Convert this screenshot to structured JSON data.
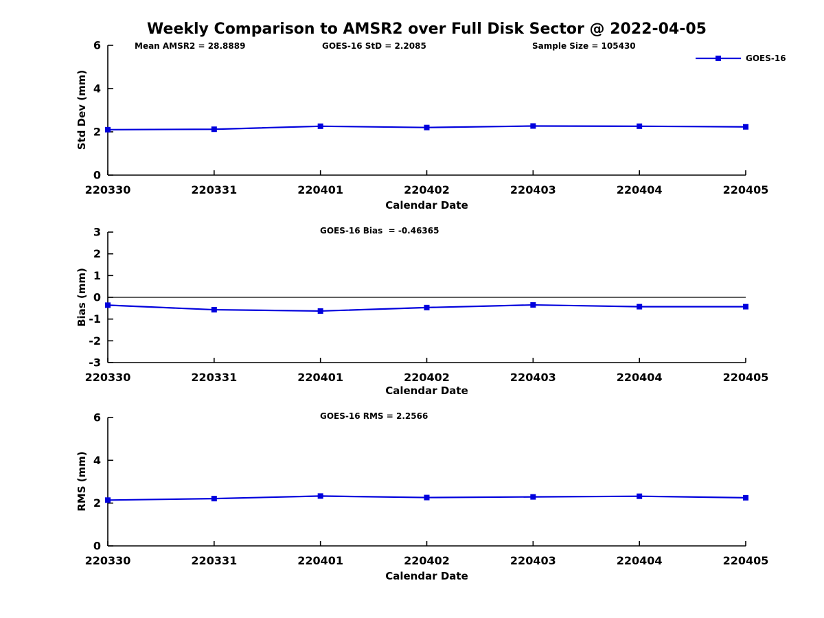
{
  "title": "Weekly Comparison to AMSR2 over Full Disk Sector @ 2022-04-05",
  "annotations": {
    "mean_amsr2": "Mean AMSR2 = 28.8889",
    "goes16_std": "GOES-16 StD = 2.2085",
    "sample_size": "Sample Size = 105430",
    "goes16_bias": "GOES-16 Bias  = -0.46365",
    "goes16_rms": "GOES-16 RMS = 2.2566"
  },
  "legend": {
    "label": "GOES-16",
    "position": "top-right"
  },
  "colors": {
    "line": "#0000DD",
    "axis": "#000000",
    "text": "#000000",
    "background": "#ffffff"
  },
  "chart_data": [
    {
      "id": "stddev",
      "type": "line",
      "series_name": "GOES-16",
      "categories": [
        "220330",
        "220331",
        "220401",
        "220402",
        "220403",
        "220404",
        "220405"
      ],
      "values": [
        2.1,
        2.12,
        2.26,
        2.2,
        2.27,
        2.26,
        2.23
      ],
      "xlabel": "Calendar Date",
      "ylabel": "Std Dev (mm)",
      "ylim": [
        0,
        6
      ],
      "yticks": [
        0,
        2,
        4,
        6
      ],
      "marker": "square",
      "grid": false,
      "zero_line": false
    },
    {
      "id": "bias",
      "type": "line",
      "series_name": "GOES-16",
      "categories": [
        "220330",
        "220331",
        "220401",
        "220402",
        "220403",
        "220404",
        "220405"
      ],
      "values": [
        -0.36,
        -0.57,
        -0.63,
        -0.47,
        -0.35,
        -0.43,
        -0.43
      ],
      "xlabel": "Calendar Date",
      "ylabel": "Bias (mm)",
      "ylim": [
        -3,
        3
      ],
      "yticks": [
        -3,
        -2,
        -1,
        0,
        1,
        2,
        3
      ],
      "marker": "square",
      "grid": false,
      "zero_line": true
    },
    {
      "id": "rms",
      "type": "line",
      "series_name": "GOES-16",
      "categories": [
        "220330",
        "220331",
        "220401",
        "220402",
        "220403",
        "220404",
        "220405"
      ],
      "values": [
        2.14,
        2.21,
        2.33,
        2.26,
        2.29,
        2.32,
        2.25
      ],
      "xlabel": "Calendar Date",
      "ylabel": "RMS (mm)",
      "ylim": [
        0,
        6
      ],
      "yticks": [
        0,
        2,
        4,
        6
      ],
      "marker": "square",
      "grid": false,
      "zero_line": false
    }
  ]
}
